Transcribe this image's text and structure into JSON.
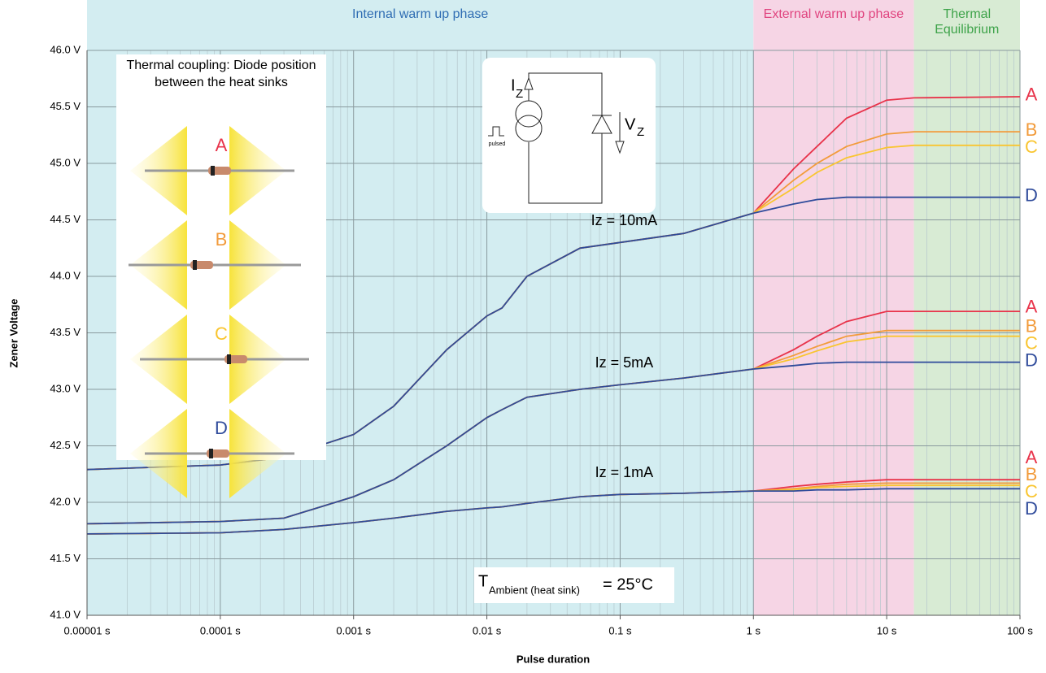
{
  "chart_data": {
    "type": "line",
    "log_x": true,
    "grid": true,
    "minor_grid": true,
    "xlabel": "Pulse duration",
    "ylabel": "Zener  Voltage",
    "xlim": [
      1e-05,
      100
    ],
    "ylim": [
      41,
      46
    ],
    "xticks": [
      {
        "value": 1e-05,
        "label": "0.00001 s"
      },
      {
        "value": 0.0001,
        "label": "0.0001 s"
      },
      {
        "value": 0.001,
        "label": "0.001 s"
      },
      {
        "value": 0.01,
        "label": "0.01 s"
      },
      {
        "value": 0.1,
        "label": "0.1 s"
      },
      {
        "value": 1,
        "label": "1 s"
      },
      {
        "value": 10,
        "label": "10 s"
      },
      {
        "value": 100,
        "label": "100 s"
      }
    ],
    "yticks": [
      {
        "value": 41,
        "label": "41.0 V"
      },
      {
        "value": 41.5,
        "label": "41.5 V"
      },
      {
        "value": 42,
        "label": "42.0 V"
      },
      {
        "value": 42.5,
        "label": "42.5 V"
      },
      {
        "value": 43,
        "label": "43.0 V"
      },
      {
        "value": 43.5,
        "label": "43.5 V"
      },
      {
        "value": 44,
        "label": "44.0 V"
      },
      {
        "value": 44.5,
        "label": "44.5 V"
      },
      {
        "value": 45,
        "label": "45.0 V"
      },
      {
        "value": 45.5,
        "label": "45.5 V"
      },
      {
        "value": 46,
        "label": "46.0 V"
      }
    ],
    "phases": [
      {
        "label": "Internal warm up phase",
        "start": 1e-05,
        "end": 1,
        "color": "#d3edf1",
        "text_color": "#2f6db3"
      },
      {
        "label": "External warm up phase",
        "start": 1,
        "end": 16,
        "color": "#f6d5e5",
        "text_color": "#e0447f"
      },
      {
        "label": "Thermal Equilibrium",
        "start": 16,
        "end": 100,
        "color": "#d8ebd4",
        "text_color": "#3ea34a"
      }
    ],
    "x": [
      1e-05,
      0.0001,
      0.0003,
      0.001,
      0.002,
      0.005,
      0.01,
      0.013,
      0.02,
      0.05,
      0.1,
      0.3,
      1,
      2,
      3,
      5,
      10,
      16,
      100
    ],
    "groups": [
      {
        "label": "Iz = 10mA",
        "series": [
          {
            "name": "A",
            "color": "#e8334a",
            "values": [
              42.29,
              42.33,
              42.4,
              42.6,
              42.85,
              43.35,
              43.65,
              43.72,
              44.0,
              44.25,
              44.3,
              44.38,
              44.56,
              44.95,
              45.15,
              45.4,
              45.56,
              45.58,
              45.59
            ]
          },
          {
            "name": "B",
            "color": "#f29b3b",
            "values": [
              42.29,
              42.33,
              42.4,
              42.6,
              42.85,
              43.35,
              43.65,
              43.72,
              44.0,
              44.25,
              44.3,
              44.38,
              44.56,
              44.85,
              45.0,
              45.15,
              45.26,
              45.28,
              45.28
            ]
          },
          {
            "name": "C",
            "color": "#f9c530",
            "values": [
              42.29,
              42.33,
              42.4,
              42.6,
              42.85,
              43.35,
              43.65,
              43.72,
              44.0,
              44.25,
              44.3,
              44.38,
              44.56,
              44.78,
              44.92,
              45.05,
              45.14,
              45.16,
              45.16
            ]
          },
          {
            "name": "D",
            "color": "#2f4b9b",
            "values": [
              42.29,
              42.33,
              42.4,
              42.6,
              42.85,
              43.35,
              43.65,
              43.72,
              44.0,
              44.25,
              44.3,
              44.38,
              44.56,
              44.64,
              44.68,
              44.7,
              44.7,
              44.7,
              44.7
            ]
          }
        ]
      },
      {
        "label": "Iz = 5mA",
        "series": [
          {
            "name": "A",
            "color": "#e8334a",
            "values": [
              41.81,
              41.83,
              41.86,
              42.05,
              42.2,
              42.5,
              42.75,
              42.82,
              42.93,
              43.0,
              43.04,
              43.1,
              43.18,
              43.35,
              43.47,
              43.6,
              43.69,
              43.69,
              43.69
            ]
          },
          {
            "name": "B",
            "color": "#f29b3b",
            "values": [
              41.81,
              41.83,
              41.86,
              42.05,
              42.2,
              42.5,
              42.75,
              42.82,
              42.93,
              43.0,
              43.04,
              43.1,
              43.18,
              43.3,
              43.38,
              43.47,
              43.52,
              43.52,
              43.52
            ]
          },
          {
            "name": "C",
            "color": "#f9c530",
            "values": [
              41.81,
              41.83,
              41.86,
              42.05,
              42.2,
              42.5,
              42.75,
              42.82,
              42.93,
              43.0,
              43.04,
              43.1,
              43.18,
              43.27,
              43.34,
              43.42,
              43.47,
              43.47,
              43.47
            ]
          },
          {
            "name": "D",
            "color": "#2f4b9b",
            "values": [
              41.81,
              41.83,
              41.86,
              42.05,
              42.2,
              42.5,
              42.75,
              42.82,
              42.93,
              43.0,
              43.04,
              43.1,
              43.18,
              43.21,
              43.23,
              43.24,
              43.24,
              43.24,
              43.24
            ]
          }
        ]
      },
      {
        "label": "Iz = 1mA",
        "series": [
          {
            "name": "A",
            "color": "#e8334a",
            "values": [
              41.72,
              41.73,
              41.76,
              41.82,
              41.86,
              41.92,
              41.95,
              41.96,
              41.99,
              42.05,
              42.07,
              42.08,
              42.1,
              42.14,
              42.16,
              42.18,
              42.2,
              42.2,
              42.2
            ]
          },
          {
            "name": "B",
            "color": "#f29b3b",
            "values": [
              41.72,
              41.73,
              41.76,
              41.82,
              41.86,
              41.92,
              41.95,
              41.96,
              41.99,
              42.05,
              42.07,
              42.08,
              42.1,
              42.12,
              42.14,
              42.16,
              42.17,
              42.17,
              42.17
            ]
          },
          {
            "name": "C",
            "color": "#f9c530",
            "values": [
              41.72,
              41.73,
              41.76,
              41.82,
              41.86,
              41.92,
              41.95,
              41.96,
              41.99,
              42.05,
              42.07,
              42.08,
              42.1,
              42.11,
              42.13,
              42.14,
              42.15,
              42.15,
              42.15
            ]
          },
          {
            "name": "D",
            "color": "#2f4b9b",
            "values": [
              41.72,
              41.73,
              41.76,
              41.82,
              41.86,
              41.92,
              41.95,
              41.96,
              41.99,
              42.05,
              42.07,
              42.08,
              42.1,
              42.1,
              42.11,
              42.11,
              42.12,
              42.12,
              42.12
            ]
          }
        ]
      }
    ],
    "coupling": {
      "title": "Thermal coupling: Diode position between the heat sinks",
      "diodes": [
        "A",
        "B",
        "C",
        "D"
      ]
    },
    "circuit": {
      "current_label": "I",
      "current_sub": "Z",
      "voltage_label": "V",
      "voltage_sub": "Z",
      "source_label": "pulsed"
    },
    "ambient": {
      "symbol": "T",
      "subscript": "Ambient (heat sink)",
      "text": "=  25°C"
    }
  }
}
